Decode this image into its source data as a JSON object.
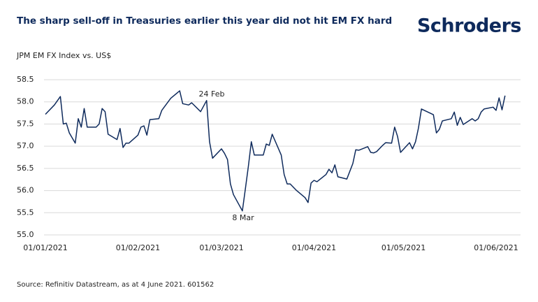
{
  "chart_data": {
    "type": "line",
    "title": "The sharp sell-off in Treasuries earlier this year did not hit EM FX hard",
    "brand": "Schroders",
    "subtitle": "JPM EM FX Index vs. US$",
    "source": "Source: Refinitiv Datastream, as at 4 June 2021. 601562",
    "annotations": [
      "24 Feb",
      "8 Mar"
    ],
    "x": [
      "2021-01-01",
      "2021-01-04",
      "2021-01-06",
      "2021-01-07",
      "2021-01-08",
      "2021-01-09",
      "2021-01-11",
      "2021-01-12",
      "2021-01-13",
      "2021-01-14",
      "2021-01-15",
      "2021-01-18",
      "2021-01-19",
      "2021-01-20",
      "2021-01-21",
      "2021-01-22",
      "2021-01-25",
      "2021-01-26",
      "2021-01-27",
      "2021-01-28",
      "2021-01-29",
      "2021-02-01",
      "2021-02-02",
      "2021-02-03",
      "2021-02-04",
      "2021-02-05",
      "2021-02-08",
      "2021-02-09",
      "2021-02-12",
      "2021-02-15",
      "2021-02-16",
      "2021-02-18",
      "2021-02-19",
      "2021-02-22",
      "2021-02-24",
      "2021-02-25",
      "2021-02-26",
      "2021-03-01",
      "2021-03-02",
      "2021-03-03",
      "2021-03-04",
      "2021-03-05",
      "2021-03-08",
      "2021-03-09",
      "2021-03-10",
      "2021-03-11",
      "2021-03-12",
      "2021-03-15",
      "2021-03-16",
      "2021-03-17",
      "2021-03-18",
      "2021-03-21",
      "2021-03-22",
      "2021-03-23",
      "2021-03-24",
      "2021-03-26",
      "2021-03-29",
      "2021-03-30",
      "2021-03-31",
      "2021-04-01",
      "2021-04-02",
      "2021-04-05",
      "2021-04-06",
      "2021-04-07",
      "2021-04-08",
      "2021-04-09",
      "2021-04-12",
      "2021-04-14",
      "2021-04-15",
      "2021-04-16",
      "2021-04-19",
      "2021-04-20",
      "2021-04-21",
      "2021-04-22",
      "2021-04-24",
      "2021-04-25",
      "2021-04-27",
      "2021-04-28",
      "2021-04-29",
      "2021-04-30",
      "2021-05-03",
      "2021-05-04",
      "2021-05-05",
      "2021-05-06",
      "2021-05-07",
      "2021-05-11",
      "2021-05-12",
      "2021-05-13",
      "2021-05-14",
      "2021-05-17",
      "2021-05-18",
      "2021-05-19",
      "2021-05-20",
      "2021-05-21",
      "2021-05-24",
      "2021-05-25",
      "2021-05-26",
      "2021-05-27",
      "2021-05-28",
      "2021-05-31",
      "2021-06-01",
      "2021-06-02",
      "2021-06-03",
      "2021-06-04"
    ],
    "series": [
      {
        "name": "JPM EM FX Index",
        "color": "#0e2a5c",
        "values": [
          57.72,
          57.93,
          58.12,
          57.5,
          57.52,
          57.3,
          57.07,
          57.62,
          57.43,
          57.85,
          57.43,
          57.43,
          57.5,
          57.85,
          57.78,
          57.27,
          57.15,
          57.4,
          56.97,
          57.07,
          57.07,
          57.25,
          57.43,
          57.46,
          57.25,
          57.6,
          57.62,
          57.81,
          58.08,
          58.25,
          57.96,
          57.93,
          57.98,
          57.78,
          58.03,
          57.1,
          56.73,
          56.94,
          56.84,
          56.7,
          56.15,
          55.91,
          55.54,
          56.04,
          56.55,
          57.1,
          56.8,
          56.8,
          57.05,
          57.02,
          57.27,
          56.8,
          56.36,
          56.15,
          56.15,
          56.01,
          55.84,
          55.73,
          56.17,
          56.23,
          56.2,
          56.36,
          56.48,
          56.4,
          56.58,
          56.31,
          56.26,
          56.61,
          56.92,
          56.91,
          56.99,
          56.86,
          56.85,
          56.88,
          57.02,
          57.08,
          57.07,
          57.43,
          57.22,
          56.86,
          57.08,
          56.94,
          57.1,
          57.41,
          57.84,
          57.71,
          57.3,
          57.38,
          57.57,
          57.62,
          57.77,
          57.47,
          57.65,
          57.49,
          57.62,
          57.57,
          57.62,
          57.77,
          57.84,
          57.88,
          57.81,
          58.09,
          57.82,
          58.14
        ]
      }
    ],
    "ylim": [
      55,
      58.5
    ],
    "yticks": [
      {
        "value": 55,
        "label": "55.0"
      },
      55.5,
      {
        "value": 56,
        "label": "56.0"
      },
      56.5,
      {
        "value": 57,
        "label": "57.0"
      },
      57.5,
      {
        "value": 58,
        "label": "58.0"
      },
      58.5
    ],
    "xticks": [
      {
        "value": "2021-01-01",
        "label": "01/01/2021"
      },
      {
        "value": "2021-02-01",
        "label": "01/02/2021"
      },
      {
        "value": "2021-03-01",
        "label": "01/03/2021"
      },
      {
        "value": "2021-04-01",
        "label": "01/04/2021"
      },
      {
        "value": "2021-05-01",
        "label": "01/05/2021"
      },
      {
        "value": "2021-06-01",
        "label": "01/06/2021"
      }
    ],
    "grid": true
  }
}
